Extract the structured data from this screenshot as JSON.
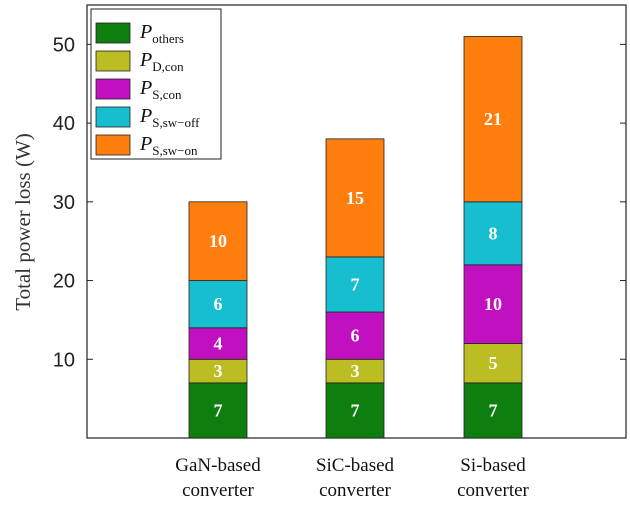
{
  "chart_data": {
    "type": "bar",
    "stacked": true,
    "categories": [
      [
        "GaN-based",
        "converter"
      ],
      [
        "SiC-based",
        "converter"
      ],
      [
        "Si-based",
        "converter"
      ]
    ],
    "series": [
      {
        "name": {
          "main": "P",
          "sub": "others"
        },
        "color": "#0e7f0e",
        "values": [
          7,
          7,
          7
        ]
      },
      {
        "name": {
          "main": "P",
          "sub": "D,con"
        },
        "color": "#bcbd22",
        "values": [
          3,
          3,
          5
        ]
      },
      {
        "name": {
          "main": "P",
          "sub": "S,con"
        },
        "color": "#c010c0",
        "values": [
          4,
          6,
          10
        ]
      },
      {
        "name": {
          "main": "P",
          "sub": "S,sw−off"
        },
        "color": "#17becf",
        "values": [
          6,
          7,
          8
        ]
      },
      {
        "name": {
          "main": "P",
          "sub": "S,sw−on"
        },
        "color": "#ff7f0e",
        "values": [
          10,
          15,
          21
        ]
      }
    ],
    "ylabel": "Total power loss (W)",
    "xlabel": "",
    "title": "",
    "ylim": [
      0,
      55
    ],
    "yticks": [
      10,
      20,
      30,
      40,
      50
    ],
    "grid": false,
    "legend_position": "top-left"
  }
}
